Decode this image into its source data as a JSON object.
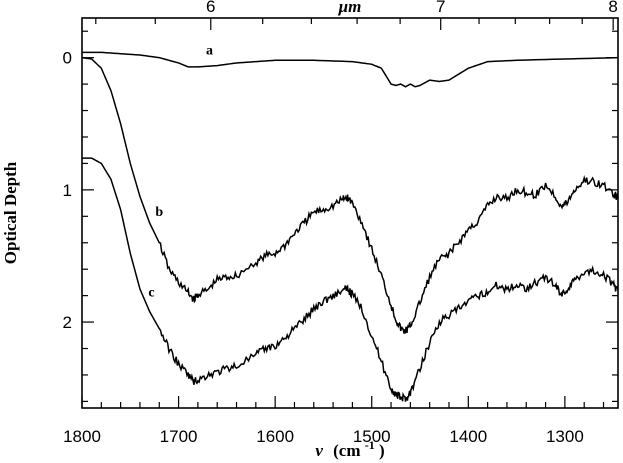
{
  "chart_data": {
    "type": "line",
    "xlabel_var": "ν",
    "xlabel_units": "(cm",
    "xlabel_exp": "-1",
    "xlabel_close": ")",
    "ylabel": "Optical Depth",
    "top_axis_label": "μm",
    "xlim": [
      1800,
      1245
    ],
    "ylim": [
      2.65,
      -0.3
    ],
    "x_ticks": [
      1800,
      1700,
      1600,
      1500,
      1400,
      1300
    ],
    "y_ticks": [
      0,
      1,
      2
    ],
    "top_ticks": [
      6,
      7,
      8
    ],
    "grid": false,
    "series": [
      {
        "name": "a",
        "label_at": [
          1668,
          -0.06
        ],
        "x": [
          1800,
          1780,
          1760,
          1740,
          1720,
          1700,
          1690,
          1680,
          1660,
          1640,
          1620,
          1600,
          1560,
          1520,
          1500,
          1490,
          1485,
          1480,
          1475,
          1470,
          1465,
          1460,
          1455,
          1450,
          1445,
          1440,
          1430,
          1420,
          1400,
          1380,
          1350,
          1300,
          1245
        ],
        "y": [
          -0.04,
          -0.04,
          -0.03,
          -0.02,
          0.0,
          0.04,
          0.07,
          0.07,
          0.06,
          0.04,
          0.03,
          0.02,
          0.02,
          0.03,
          0.05,
          0.08,
          0.14,
          0.2,
          0.21,
          0.2,
          0.22,
          0.2,
          0.22,
          0.21,
          0.19,
          0.17,
          0.18,
          0.17,
          0.08,
          0.03,
          0.02,
          0.01,
          0.0
        ]
      },
      {
        "name": "b",
        "label_at": [
          1720,
          1.16
        ],
        "x": [
          1800,
          1790,
          1780,
          1770,
          1760,
          1750,
          1740,
          1730,
          1720,
          1710,
          1700,
          1690,
          1684,
          1680,
          1670,
          1660,
          1650,
          1640,
          1620,
          1610,
          1600,
          1590,
          1580,
          1570,
          1560,
          1550,
          1540,
          1530,
          1525,
          1520,
          1510,
          1500,
          1490,
          1480,
          1475,
          1470,
          1466,
          1462,
          1458,
          1450,
          1440,
          1430,
          1420,
          1410,
          1400,
          1390,
          1380,
          1370,
          1360,
          1350,
          1340,
          1330,
          1320,
          1310,
          1303,
          1297,
          1290,
          1280,
          1270,
          1260,
          1250,
          1245
        ],
        "y": [
          0.0,
          0.01,
          0.08,
          0.25,
          0.5,
          0.8,
          1.05,
          1.25,
          1.4,
          1.6,
          1.7,
          1.78,
          1.83,
          1.79,
          1.76,
          1.68,
          1.66,
          1.65,
          1.55,
          1.5,
          1.48,
          1.42,
          1.33,
          1.25,
          1.17,
          1.15,
          1.12,
          1.07,
          1.06,
          1.1,
          1.25,
          1.45,
          1.65,
          1.87,
          1.98,
          2.05,
          2.07,
          2.05,
          2.0,
          1.85,
          1.66,
          1.53,
          1.48,
          1.4,
          1.3,
          1.24,
          1.12,
          1.05,
          1.07,
          1.0,
          1.02,
          1.04,
          0.96,
          1.05,
          1.13,
          1.09,
          1.0,
          0.93,
          0.94,
          0.97,
          1.03,
          1.06
        ]
      },
      {
        "name": "c",
        "label_at": [
          1728,
          1.77
        ],
        "x": [
          1800,
          1790,
          1780,
          1770,
          1760,
          1750,
          1740,
          1730,
          1720,
          1710,
          1700,
          1690,
          1684,
          1680,
          1670,
          1660,
          1650,
          1640,
          1620,
          1610,
          1600,
          1590,
          1580,
          1570,
          1560,
          1550,
          1540,
          1530,
          1525,
          1520,
          1510,
          1500,
          1490,
          1480,
          1475,
          1470,
          1466,
          1462,
          1458,
          1450,
          1440,
          1430,
          1420,
          1410,
          1400,
          1390,
          1380,
          1370,
          1360,
          1350,
          1340,
          1330,
          1320,
          1310,
          1303,
          1297,
          1290,
          1280,
          1270,
          1260,
          1250,
          1245
        ],
        "y": [
          0.76,
          0.76,
          0.8,
          0.92,
          1.15,
          1.48,
          1.75,
          1.92,
          2.05,
          2.2,
          2.32,
          2.4,
          2.45,
          2.44,
          2.4,
          2.38,
          2.35,
          2.33,
          2.25,
          2.2,
          2.18,
          2.12,
          2.05,
          1.98,
          1.9,
          1.84,
          1.8,
          1.76,
          1.75,
          1.79,
          1.9,
          2.1,
          2.3,
          2.5,
          2.55,
          2.57,
          2.58,
          2.56,
          2.5,
          2.35,
          2.15,
          2.0,
          1.95,
          1.9,
          1.85,
          1.8,
          1.77,
          1.72,
          1.75,
          1.72,
          1.74,
          1.7,
          1.66,
          1.72,
          1.79,
          1.75,
          1.68,
          1.62,
          1.61,
          1.64,
          1.72,
          1.76
        ]
      }
    ]
  }
}
